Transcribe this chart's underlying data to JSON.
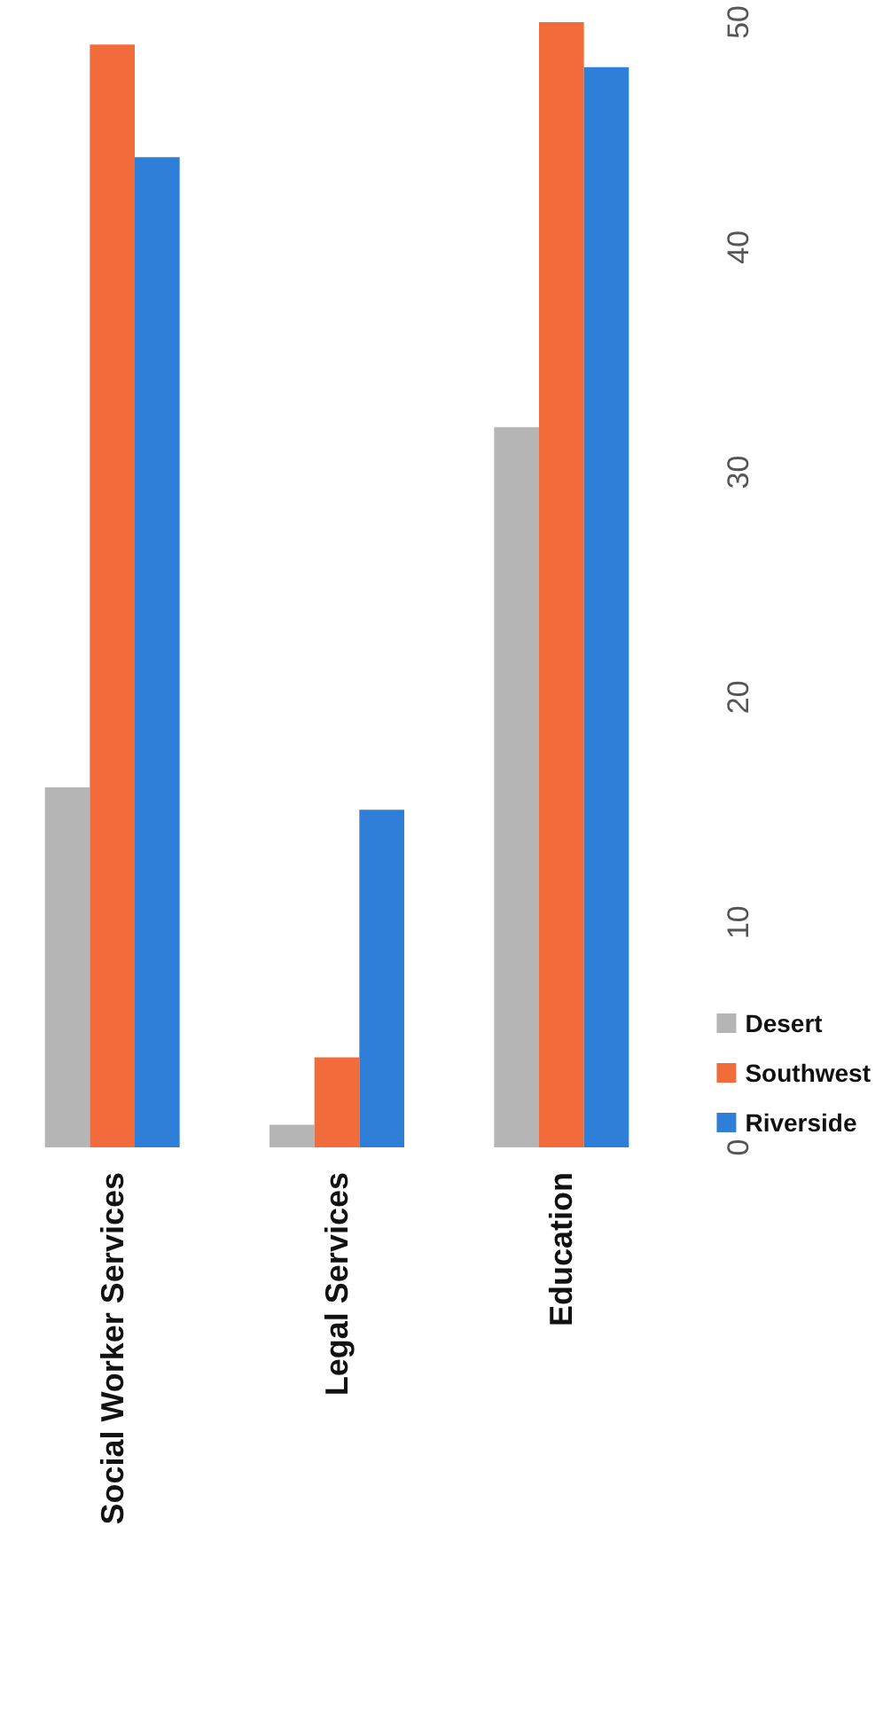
{
  "chart_data": {
    "type": "bar",
    "categories": [
      "Social Worker Services",
      "Legal Services",
      "Education"
    ],
    "series": [
      {
        "name": "Desert",
        "color": "#b5b5b5",
        "values": [
          16,
          1,
          32
        ]
      },
      {
        "name": "Southwest",
        "color": "#f26b3a",
        "values": [
          49,
          4,
          50
        ]
      },
      {
        "name": "Riverside",
        "color": "#2f7fd8",
        "values": [
          44,
          15,
          48
        ]
      }
    ],
    "ylim": [
      0,
      50
    ],
    "yticks": [
      0,
      10,
      20,
      30,
      40,
      50
    ],
    "grid": false,
    "legend": "right"
  }
}
